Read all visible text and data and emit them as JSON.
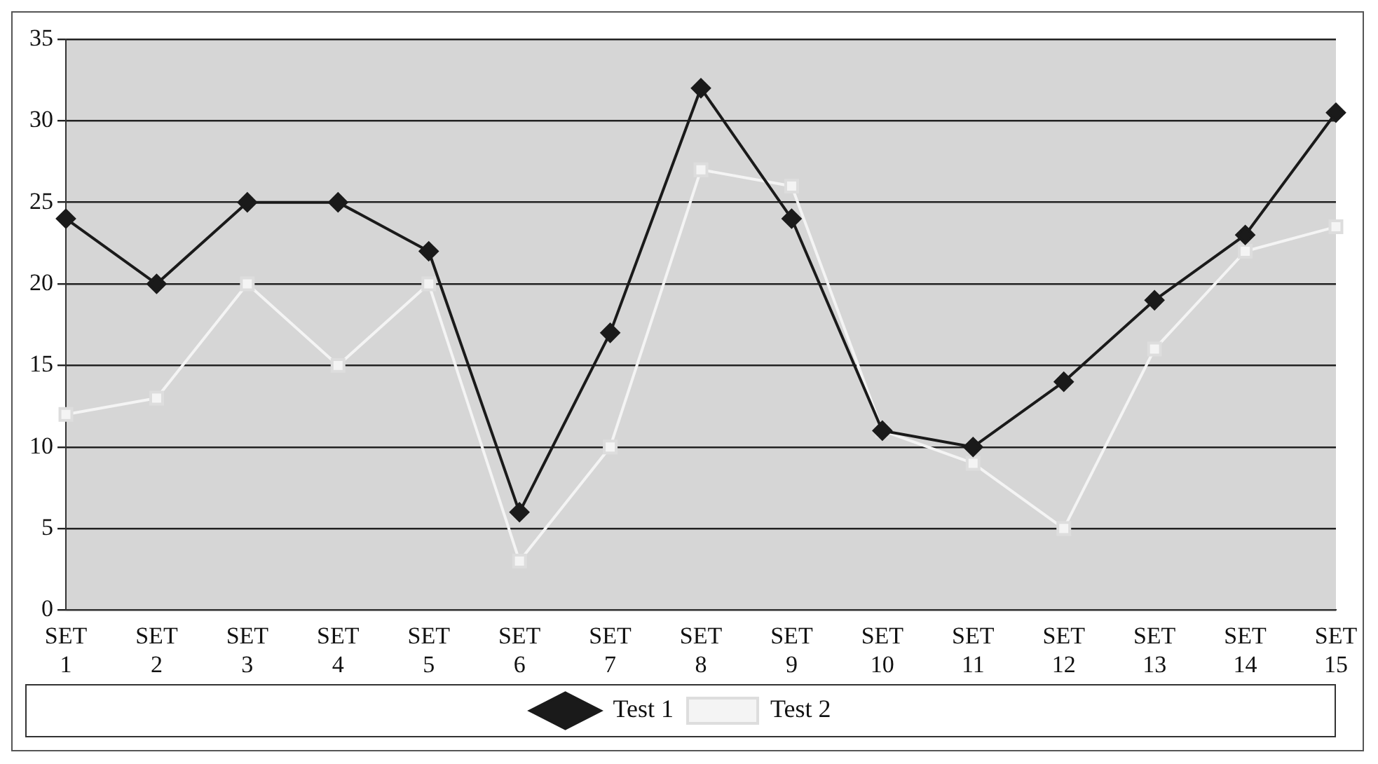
{
  "chart_data": {
    "type": "line",
    "categories": [
      "SET 1",
      "SET 2",
      "SET 3",
      "SET 4",
      "SET 5",
      "SET 6",
      "SET 7",
      "SET 8",
      "SET 9",
      "SET 10",
      "SET 11",
      "SET 12",
      "SET 13",
      "SET 14",
      "SET 15"
    ],
    "series": [
      {
        "name": "Test 1",
        "color": "#1a1a1a",
        "marker": "diamond",
        "values": [
          24,
          20,
          25,
          25,
          22,
          6,
          17,
          32,
          24,
          11,
          10,
          14,
          19,
          23,
          30.5
        ]
      },
      {
        "name": "Test 2",
        "color": "#f4f4f4",
        "marker": "square",
        "values": [
          12,
          13,
          20,
          15,
          20,
          3,
          10,
          27,
          26,
          11,
          9,
          5,
          16,
          22,
          23.5
        ]
      }
    ],
    "ylim": [
      0,
      35
    ],
    "yticks": [
      0,
      5,
      10,
      15,
      20,
      25,
      30,
      35
    ],
    "grid": "y",
    "legend": "bottom",
    "line_style": "solid"
  }
}
